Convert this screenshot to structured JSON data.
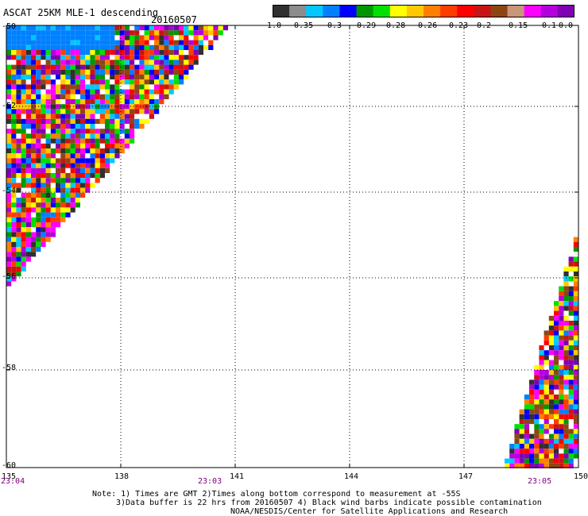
{
  "header": {
    "title": "ASCAT 25KM MLE-1 descending",
    "date": "20160507"
  },
  "colorbar": {
    "labels": [
      "-1.0",
      "-0.35",
      "-0.3",
      "-0.29",
      "-0.28",
      "-0.26",
      "-0.23",
      "-0.2",
      "-0.15",
      "-0.1",
      "0.0"
    ],
    "colors": [
      "#303030",
      "#8c8c8c",
      "#00c8ff",
      "#0080ff",
      "#0000ff",
      "#009600",
      "#00e000",
      "#ffff00",
      "#ffc800",
      "#ff8000",
      "#ff3c00",
      "#ff0000",
      "#c81414",
      "#8c4614",
      "#c89678",
      "#ff00ff",
      "#b400dc",
      "#8000b4"
    ]
  },
  "axes": {
    "y_ticks": [
      "-50",
      "-52",
      "-54",
      "-56",
      "-58",
      "-60"
    ],
    "x_ticks": [
      "135",
      "138",
      "141",
      "144",
      "147",
      "150"
    ],
    "time_ticks": [
      "23:04",
      "23:03",
      "23:05"
    ]
  },
  "map_data": {
    "lon_range": [
      135,
      150
    ],
    "lat_range": [
      -60,
      -50
    ],
    "swaths": [
      {
        "name": "left",
        "time": "23:04"
      },
      {
        "name": "right",
        "time": "23:05"
      }
    ],
    "palette": [
      "#00c8ff",
      "#0080ff",
      "#0000ff",
      "#009600",
      "#00e000",
      "#ffff00",
      "#ffc800",
      "#ff8000",
      "#ff3c00",
      "#ff0000",
      "#c81414",
      "#8c4614",
      "#ff00ff",
      "#b400dc",
      "#8000b4",
      "#ffffff",
      "#303030"
    ]
  },
  "notes": [
    "Note: 1) Times are GMT 2)Times along bottom correspond to measurement at -55S",
    "3)Data buffer is 22 hrs from 20160507 4) Black wind barbs indicate possible contamination",
    "NOAA/NESDIS/Center for Satellite Applications and Research"
  ]
}
